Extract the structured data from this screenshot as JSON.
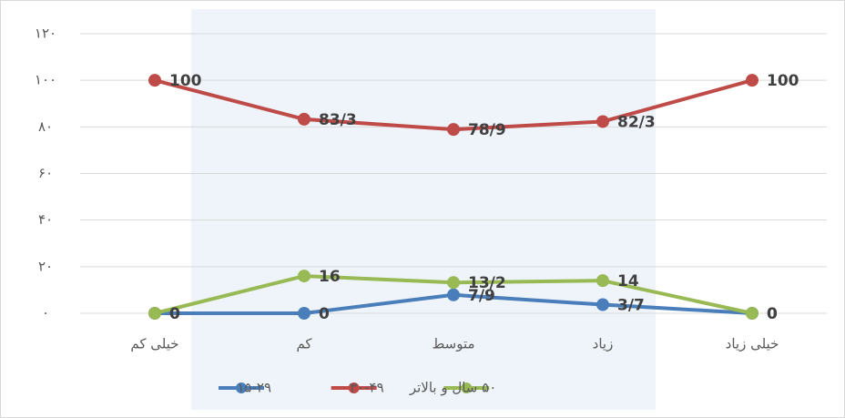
{
  "chart_data": {
    "type": "line",
    "categories": [
      "خیلی کم",
      "کم",
      "متوسط",
      "زیاد",
      "خیلی زیاد"
    ],
    "series": [
      {
        "name": "۱۵-۲۹",
        "color": "#4a7ebb",
        "values": [
          0,
          0,
          7.9,
          3.7,
          0
        ],
        "value_labels": [
          "0",
          "0",
          "7/9",
          "3/7",
          "0"
        ]
      },
      {
        "name": "۳۰-۴۹",
        "color": "#be4b48",
        "values": [
          100,
          83.3,
          78.9,
          82.3,
          100
        ],
        "value_labels": [
          "100",
          "83/3",
          "78/9",
          "82/3",
          "100"
        ]
      },
      {
        "name": "۵۰ سال و بالاتر",
        "color": "#98b954",
        "values": [
          0,
          16,
          13.2,
          14,
          0
        ],
        "value_labels": [
          "0",
          "16",
          "13/2",
          "14",
          "0"
        ]
      }
    ],
    "ylim": [
      0,
      120
    ],
    "yticks": [
      {
        "value": 0,
        "label": "۰"
      },
      {
        "value": 20,
        "label": "۲۰"
      },
      {
        "value": 40,
        "label": "۴۰"
      },
      {
        "value": 60,
        "label": "۶۰"
      },
      {
        "value": 80,
        "label": "۸۰"
      },
      {
        "value": 100,
        "label": "۱۰۰"
      },
      {
        "value": 120,
        "label": "۱۲۰"
      }
    ],
    "grid": true
  }
}
